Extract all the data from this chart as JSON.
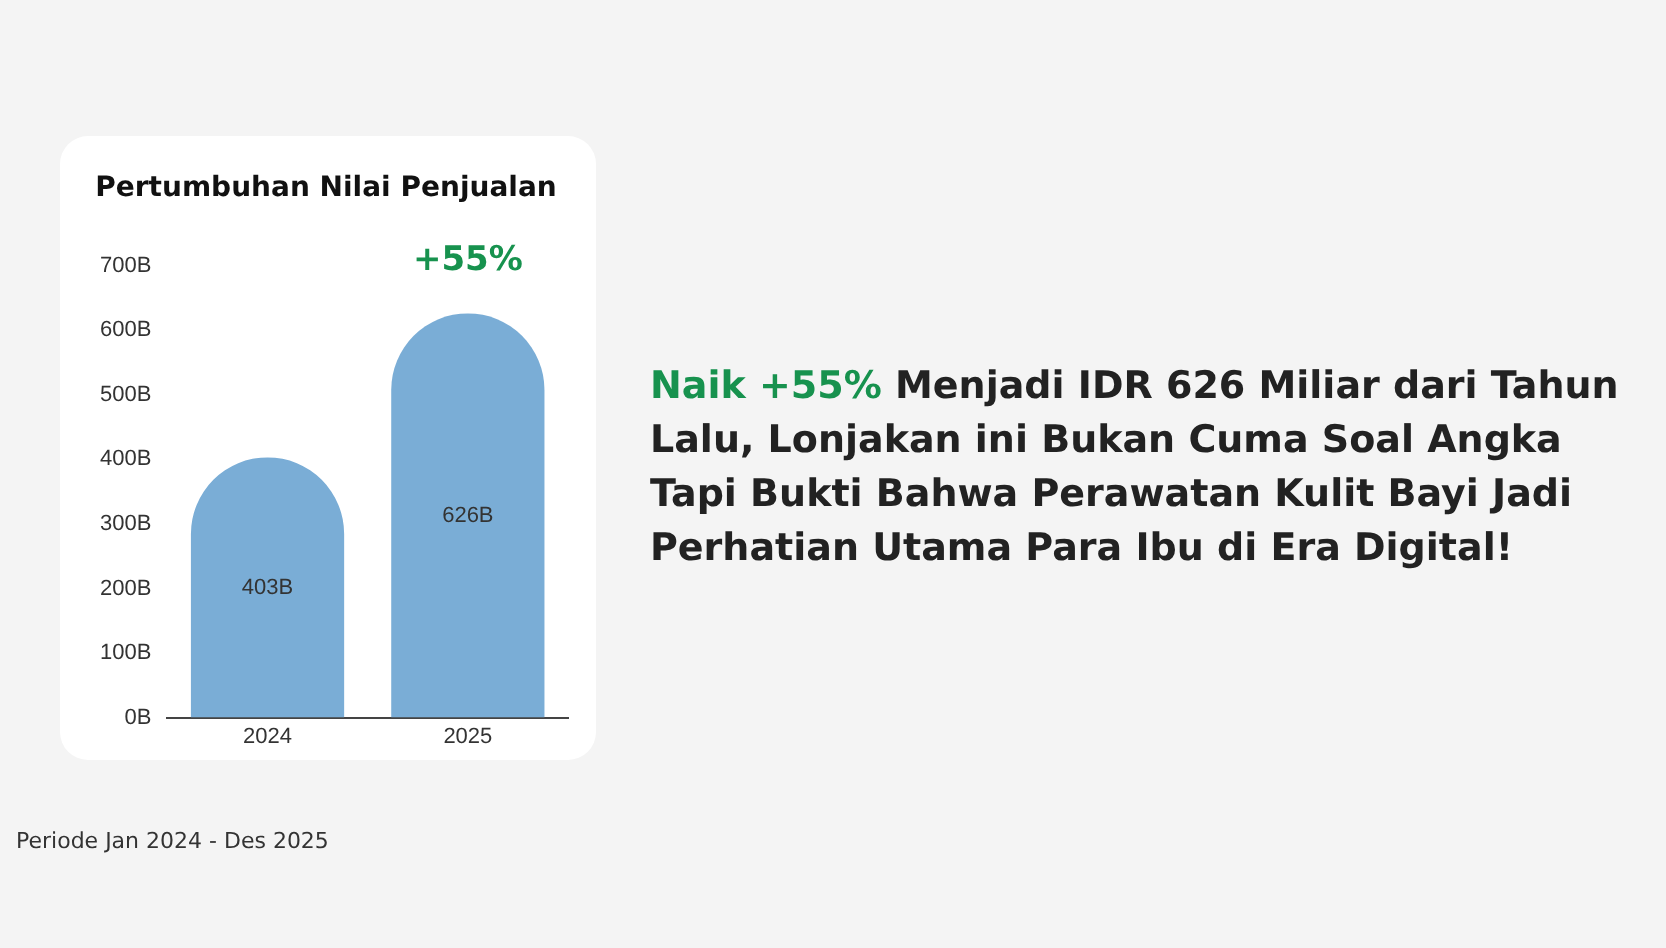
{
  "chart_data": {
    "type": "bar",
    "title": "Pertumbuhan Nilai Penjualan",
    "categories": [
      "2024",
      "2025"
    ],
    "values": [
      403,
      626
    ],
    "value_labels": [
      "403B",
      "626B"
    ],
    "color": "#7aadd6",
    "ylim": [
      0,
      700
    ],
    "yticks": [
      {
        "value": 0,
        "label": "0B"
      },
      {
        "value": 100,
        "label": "100B"
      },
      {
        "value": 200,
        "label": "200B"
      },
      {
        "value": 300,
        "label": "300B"
      },
      {
        "value": 400,
        "label": "400B"
      },
      {
        "value": 500,
        "label": "500B"
      },
      {
        "value": 600,
        "label": "600B"
      },
      {
        "value": 700,
        "label": "700B"
      }
    ],
    "grid": false,
    "legend": false,
    "annotations": [
      {
        "text": "+55%",
        "x": "2025",
        "y": 626
      },
      "Naik +55%",
      "Menjadi IDR 626 Miliar dari Tahun Lalu, Lonjakan ini Bukan Cuma Soal Angka Tapi Bukti Bahwa Perawatan Kulit Bayi Jadi Perhatian Utama Para Ibu di Era Digital!",
      "Periode Jan 2024 - Des 2025"
    ]
  }
}
